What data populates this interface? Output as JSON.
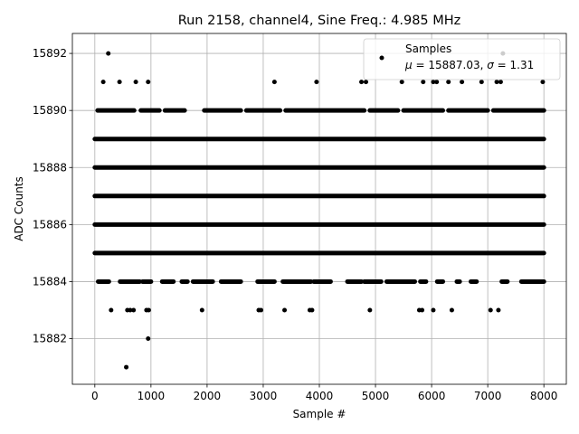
{
  "chart_data": {
    "type": "scatter",
    "title": "Run 2158, channel4, Sine Freq.: 4.985 MHz",
    "xlabel": "Sample #",
    "ylabel": "ADC Counts",
    "xlim": [
      -400,
      8400
    ],
    "ylim": [
      15880.4,
      15892.7
    ],
    "x_ticks": [
      0,
      1000,
      2000,
      3000,
      4000,
      5000,
      6000,
      7000,
      8000
    ],
    "x_tick_labels": [
      "0",
      "1000",
      "2000",
      "3000",
      "4000",
      "5000",
      "6000",
      "7000",
      "8000"
    ],
    "y_ticks": [
      15882,
      15884,
      15886,
      15888,
      15890,
      15892
    ],
    "y_tick_labels": [
      "15882",
      "15884",
      "15886",
      "15888",
      "15890",
      "15892"
    ],
    "grid": true,
    "legend": {
      "placement": "top-right",
      "marker_label": "Samples",
      "stats_line_parts": [
        "μ",
        " = 15887.03, ",
        "σ",
        " = 1.31"
      ]
    },
    "color": "#000000",
    "series": [
      {
        "name": "Samples",
        "dense_levels": [
          {
            "y": 15885,
            "x_range": [
              0,
              8000
            ]
          },
          {
            "y": 15886,
            "x_range": [
              0,
              8000
            ]
          },
          {
            "y": 15887,
            "x_range": [
              0,
              8000
            ]
          },
          {
            "y": 15888,
            "x_range": [
              0,
              8000
            ]
          },
          {
            "y": 15889,
            "x_range": [
              0,
              8000
            ]
          }
        ],
        "sparse_levels": [
          {
            "y": 15890,
            "segments": [
              [
                50,
                700
              ],
              [
                820,
                1150
              ],
              [
                1250,
                1600
              ],
              [
                1950,
                2600
              ],
              [
                2700,
                3300
              ],
              [
                3400,
                4800
              ],
              [
                4900,
                5400
              ],
              [
                5500,
                6200
              ],
              [
                6300,
                7000
              ],
              [
                7100,
                8000
              ]
            ]
          },
          {
            "y": 15884,
            "segments": [
              [
                60,
                250
              ],
              [
                450,
                800
              ],
              [
                850,
                1000
              ],
              [
                1200,
                1400
              ],
              [
                1550,
                1650
              ],
              [
                1750,
                2100
              ],
              [
                2250,
                2600
              ],
              [
                2900,
                3200
              ],
              [
                3350,
                3850
              ],
              [
                3900,
                4200
              ],
              [
                4500,
                4750
              ],
              [
                4800,
                5100
              ],
              [
                5200,
                5700
              ],
              [
                5800,
                5900
              ],
              [
                6100,
                6200
              ],
              [
                6450,
                6500
              ],
              [
                6700,
                6800
              ],
              [
                7250,
                7350
              ],
              [
                7600,
                8000
              ]
            ]
          }
        ],
        "points": [
          {
            "x": 240,
            "y": 15892
          },
          {
            "x": 7270,
            "y": 15892
          },
          {
            "x": 150,
            "y": 15891
          },
          {
            "x": 440,
            "y": 15891
          },
          {
            "x": 730,
            "y": 15891
          },
          {
            "x": 950,
            "y": 15891
          },
          {
            "x": 3200,
            "y": 15891
          },
          {
            "x": 3950,
            "y": 15891
          },
          {
            "x": 4750,
            "y": 15891
          },
          {
            "x": 4830,
            "y": 15891
          },
          {
            "x": 5470,
            "y": 15891
          },
          {
            "x": 5850,
            "y": 15891
          },
          {
            "x": 6030,
            "y": 15891
          },
          {
            "x": 6090,
            "y": 15891
          },
          {
            "x": 6300,
            "y": 15891
          },
          {
            "x": 6540,
            "y": 15891
          },
          {
            "x": 6890,
            "y": 15891
          },
          {
            "x": 7160,
            "y": 15891
          },
          {
            "x": 7230,
            "y": 15891
          },
          {
            "x": 7980,
            "y": 15891
          },
          {
            "x": 290,
            "y": 15883
          },
          {
            "x": 580,
            "y": 15883
          },
          {
            "x": 630,
            "y": 15883
          },
          {
            "x": 690,
            "y": 15883
          },
          {
            "x": 920,
            "y": 15883
          },
          {
            "x": 960,
            "y": 15883
          },
          {
            "x": 1910,
            "y": 15883
          },
          {
            "x": 2920,
            "y": 15883
          },
          {
            "x": 2960,
            "y": 15883
          },
          {
            "x": 3380,
            "y": 15883
          },
          {
            "x": 3830,
            "y": 15883
          },
          {
            "x": 3870,
            "y": 15883
          },
          {
            "x": 4900,
            "y": 15883
          },
          {
            "x": 5780,
            "y": 15883
          },
          {
            "x": 5830,
            "y": 15883
          },
          {
            "x": 6030,
            "y": 15883
          },
          {
            "x": 6360,
            "y": 15883
          },
          {
            "x": 7050,
            "y": 15883
          },
          {
            "x": 7190,
            "y": 15883
          },
          {
            "x": 950,
            "y": 15882
          },
          {
            "x": 560,
            "y": 15881
          }
        ],
        "mean": 15887.03,
        "std": 1.31
      }
    ]
  }
}
